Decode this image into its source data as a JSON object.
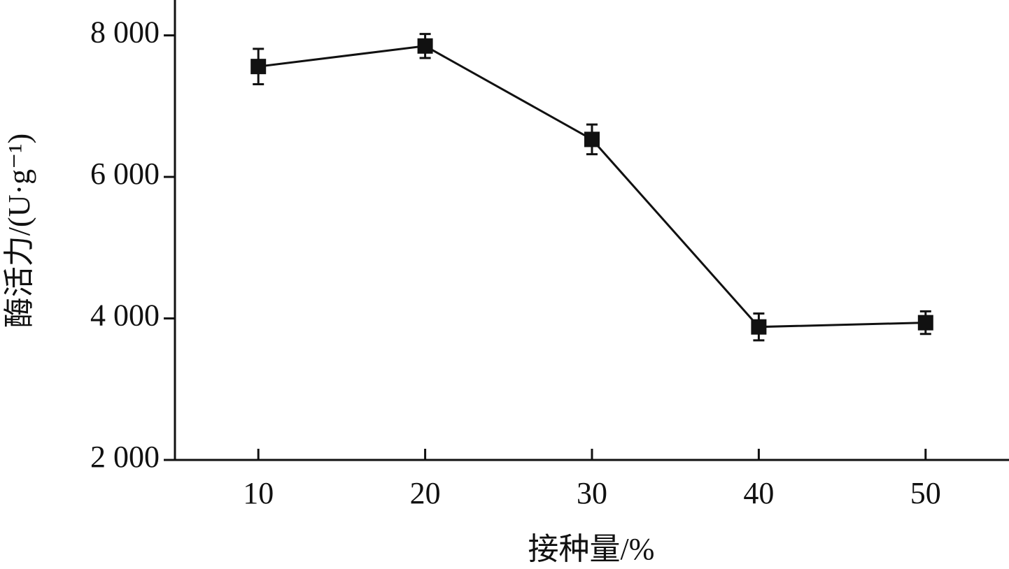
{
  "chart_data": {
    "type": "line",
    "x_label": "接种量/%",
    "y_label": "酶活力/(U·g⁻¹)",
    "x": [
      10,
      20,
      30,
      40,
      50
    ],
    "series": [
      {
        "name": null,
        "color": "#111111",
        "values": [
          7560,
          7850,
          6530,
          3880,
          3940
        ],
        "errors": [
          250,
          170,
          210,
          190,
          160
        ]
      }
    ],
    "xlim": [
      5,
      55
    ],
    "xticks": [
      10,
      20,
      30,
      40,
      50
    ],
    "ylim": [
      2000,
      8500
    ],
    "yticks": [
      {
        "value": 2000,
        "label": "2 000"
      },
      {
        "value": 4000,
        "label": "4 000"
      },
      {
        "value": 6000,
        "label": "6 000"
      },
      {
        "value": 8000,
        "label": "8 000"
      }
    ],
    "marker": "square"
  }
}
